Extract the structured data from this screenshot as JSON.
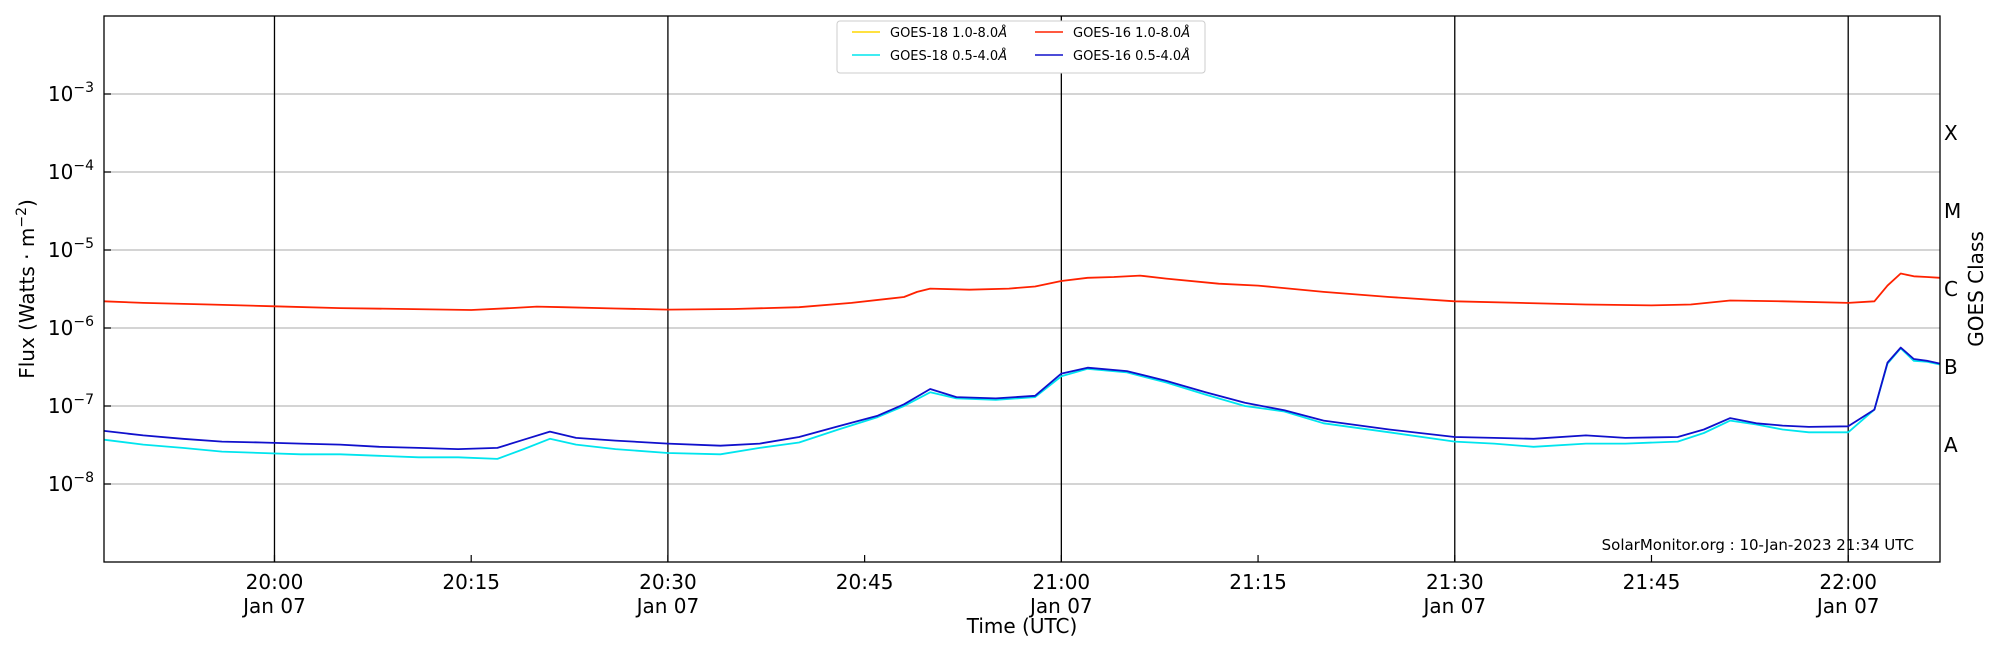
{
  "chart_data": {
    "type": "line",
    "xlabel": "Time (UTC)",
    "ylabel": "Flux (Watts · m",
    "ylabel_sup": "−2",
    "ylabel_close": ")",
    "ylabel_right": "GOES Class",
    "watermark": "SolarMonitor.org : 10-Jan-2023 21:34 UTC",
    "x_unit": "UTC time on Jan 07",
    "xlim": [
      "19:47",
      "22:07"
    ],
    "yscale": "log",
    "ylim": [
      1e-09,
      0.01
    ],
    "grid": true,
    "legend_position": "top-center",
    "x_ticks": [
      {
        "value": "20:00",
        "line1": "20:00",
        "line2": "Jan 07",
        "vline": true
      },
      {
        "value": "20:15",
        "line1": "20:15",
        "line2": "",
        "vline": false
      },
      {
        "value": "20:30",
        "line1": "20:30",
        "line2": "Jan 07",
        "vline": true
      },
      {
        "value": "20:45",
        "line1": "20:45",
        "line2": "",
        "vline": false
      },
      {
        "value": "21:00",
        "line1": "21:00",
        "line2": "Jan 07",
        "vline": true
      },
      {
        "value": "21:15",
        "line1": "21:15",
        "line2": "",
        "vline": false
      },
      {
        "value": "21:30",
        "line1": "21:30",
        "line2": "Jan 07",
        "vline": true
      },
      {
        "value": "21:45",
        "line1": "21:45",
        "line2": "",
        "vline": false
      },
      {
        "value": "22:00",
        "line1": "22:00",
        "line2": "Jan 07",
        "vline": true
      }
    ],
    "y_ticks": [
      {
        "exp": -8,
        "base": "10",
        "sup": "−8"
      },
      {
        "exp": -7,
        "base": "10",
        "sup": "−7"
      },
      {
        "exp": -6,
        "base": "10",
        "sup": "−6"
      },
      {
        "exp": -5,
        "base": "10",
        "sup": "−5"
      },
      {
        "exp": -4,
        "base": "10",
        "sup": "−4"
      },
      {
        "exp": -3,
        "base": "10",
        "sup": "−3"
      }
    ],
    "goes_classes": [
      {
        "label": "A",
        "flux": 3.16e-08
      },
      {
        "label": "B",
        "flux": 3.16e-07
      },
      {
        "label": "C",
        "flux": 3.16e-06
      },
      {
        "label": "M",
        "flux": 3.16e-05
      },
      {
        "label": "X",
        "flux": 0.000316
      }
    ],
    "series": [
      {
        "name": "GOES-18 1.0-8.0",
        "name_unit": "Å",
        "color": "#ffd700",
        "x": [],
        "y": []
      },
      {
        "name": "GOES-18 0.5-4.0",
        "name_unit": "Å",
        "color": "#00e5ee",
        "x": [
          "19:47",
          "19:50",
          "19:53",
          "19:56",
          "19:59",
          "20:02",
          "20:05",
          "20:08",
          "20:11",
          "20:14",
          "20:17",
          "20:19",
          "20:21",
          "20:23",
          "20:26",
          "20:30",
          "20:34",
          "20:37",
          "20:40",
          "20:43",
          "20:46",
          "20:48",
          "20:50",
          "20:52",
          "20:55",
          "20:58",
          "21:00",
          "21:02",
          "21:05",
          "21:08",
          "21:11",
          "21:14",
          "21:17",
          "21:20",
          "21:25",
          "21:30",
          "21:33",
          "21:36",
          "21:40",
          "21:43",
          "21:47",
          "21:49",
          "21:51",
          "21:53",
          "21:55",
          "21:57",
          "22:00",
          "22:02",
          "22:03",
          "22:04",
          "22:05",
          "22:06",
          "22:07"
        ],
        "y": [
          3.7e-08,
          3.2e-08,
          2.9e-08,
          2.6e-08,
          2.5e-08,
          2.4e-08,
          2.4e-08,
          2.3e-08,
          2.2e-08,
          2.2e-08,
          2.1e-08,
          2.8e-08,
          3.8e-08,
          3.2e-08,
          2.8e-08,
          2.5e-08,
          2.4e-08,
          2.9e-08,
          3.4e-08,
          5e-08,
          7.2e-08,
          1e-07,
          1.5e-07,
          1.25e-07,
          1.2e-07,
          1.3e-07,
          2.4e-07,
          3e-07,
          2.7e-07,
          2e-07,
          1.4e-07,
          1e-07,
          8.5e-08,
          6e-08,
          4.6e-08,
          3.5e-08,
          3.3e-08,
          3e-08,
          3.3e-08,
          3.3e-08,
          3.5e-08,
          4.5e-08,
          6.5e-08,
          5.8e-08,
          5e-08,
          4.6e-08,
          4.6e-08,
          9e-08,
          3.5e-07,
          5.5e-07,
          3.8e-07,
          3.7e-07,
          3.4e-07
        ]
      },
      {
        "name": "GOES-16 1.0-8.0",
        "name_unit": "Å",
        "color": "#ff2200",
        "x": [
          "19:47",
          "19:50",
          "19:55",
          "20:00",
          "20:05",
          "20:10",
          "20:15",
          "20:18",
          "20:20",
          "20:22",
          "20:26",
          "20:30",
          "20:35",
          "20:40",
          "20:44",
          "20:48",
          "20:49",
          "20:50",
          "20:53",
          "20:56",
          "20:58",
          "21:00",
          "21:02",
          "21:04",
          "21:06",
          "21:08",
          "21:12",
          "21:15",
          "21:20",
          "21:25",
          "21:30",
          "21:35",
          "21:40",
          "21:45",
          "21:48",
          "21:51",
          "21:55",
          "22:00",
          "22:02",
          "22:03",
          "22:04",
          "22:05",
          "22:06",
          "22:07"
        ],
        "y": [
          2.2e-06,
          2.1e-06,
          2e-06,
          1.9e-06,
          1.8e-06,
          1.75e-06,
          1.7e-06,
          1.8e-06,
          1.88e-06,
          1.85e-06,
          1.78e-06,
          1.72e-06,
          1.75e-06,
          1.85e-06,
          2.1e-06,
          2.5e-06,
          2.9e-06,
          3.2e-06,
          3.1e-06,
          3.2e-06,
          3.4e-06,
          4e-06,
          4.4e-06,
          4.5e-06,
          4.7e-06,
          4.3e-06,
          3.7e-06,
          3.5e-06,
          2.9e-06,
          2.5e-06,
          2.2e-06,
          2.1e-06,
          2e-06,
          1.95e-06,
          2e-06,
          2.25e-06,
          2.2e-06,
          2.1e-06,
          2.2e-06,
          3.5e-06,
          5e-06,
          4.6e-06,
          4.5e-06,
          4.4e-06
        ]
      },
      {
        "name": "GOES-16 0.5-4.0",
        "name_unit": "Å",
        "color": "#1010cc",
        "x": [
          "19:47",
          "19:50",
          "19:53",
          "19:56",
          "19:59",
          "20:02",
          "20:05",
          "20:08",
          "20:11",
          "20:14",
          "20:17",
          "20:19",
          "20:21",
          "20:23",
          "20:26",
          "20:30",
          "20:34",
          "20:37",
          "20:40",
          "20:43",
          "20:46",
          "20:48",
          "20:50",
          "20:52",
          "20:55",
          "20:58",
          "21:00",
          "21:02",
          "21:05",
          "21:08",
          "21:11",
          "21:14",
          "21:17",
          "21:20",
          "21:25",
          "21:30",
          "21:33",
          "21:36",
          "21:40",
          "21:43",
          "21:47",
          "21:49",
          "21:51",
          "21:53",
          "21:55",
          "21:57",
          "22:00",
          "22:02",
          "22:03",
          "22:04",
          "22:05",
          "22:06",
          "22:07"
        ],
        "y": [
          4.8e-08,
          4.2e-08,
          3.8e-08,
          3.5e-08,
          3.4e-08,
          3.3e-08,
          3.2e-08,
          3e-08,
          2.9e-08,
          2.8e-08,
          2.9e-08,
          3.7e-08,
          4.7e-08,
          3.9e-08,
          3.6e-08,
          3.3e-08,
          3.1e-08,
          3.3e-08,
          4e-08,
          5.5e-08,
          7.5e-08,
          1.05e-07,
          1.65e-07,
          1.3e-07,
          1.25e-07,
          1.35e-07,
          2.6e-07,
          3.1e-07,
          2.8e-07,
          2.1e-07,
          1.5e-07,
          1.1e-07,
          8.8e-08,
          6.5e-08,
          5e-08,
          4e-08,
          3.9e-08,
          3.8e-08,
          4.2e-08,
          3.9e-08,
          4e-08,
          5e-08,
          7e-08,
          6e-08,
          5.6e-08,
          5.4e-08,
          5.5e-08,
          9e-08,
          3.6e-07,
          5.6e-07,
          4e-07,
          3.8e-07,
          3.5e-07
        ]
      }
    ]
  }
}
